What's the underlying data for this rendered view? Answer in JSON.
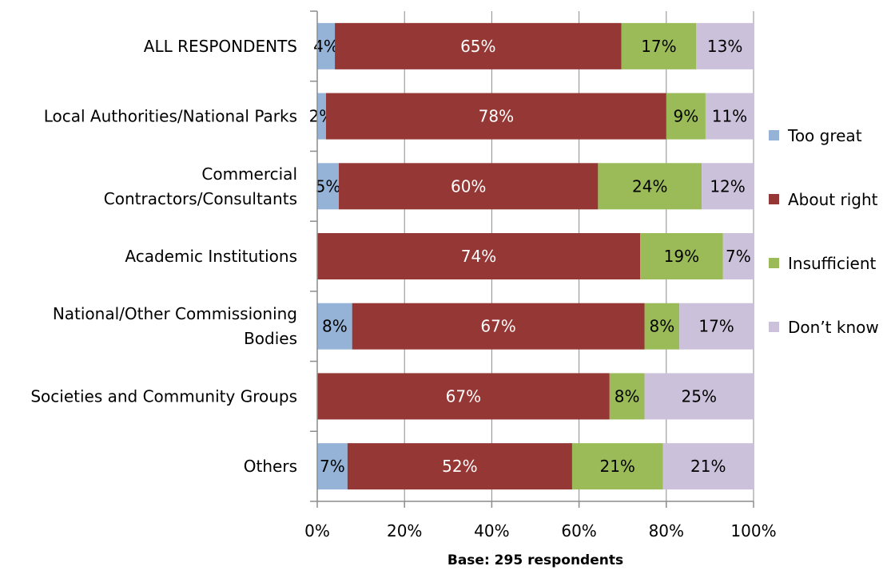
{
  "chart_data": {
    "type": "bar",
    "orientation": "horizontal",
    "stacked": "percent",
    "categories": [
      "ALL RESPONDENTS",
      "Local Authorities/National Parks",
      "Commercial Contractors/Consultants",
      "Academic Institutions",
      "National/Other Commissioning Bodies",
      "Societies and Community Groups",
      "Others"
    ],
    "category_lines": [
      [
        "ALL RESPONDENTS"
      ],
      [
        "Local Authorities/National Parks"
      ],
      [
        "Commercial",
        "Contractors/Consultants"
      ],
      [
        "Academic Institutions"
      ],
      [
        "National/Other Commissioning",
        "Bodies"
      ],
      [
        "Societies and Community Groups"
      ],
      [
        "Others"
      ]
    ],
    "series": [
      {
        "name": "Too great",
        "color": "#95b3d7",
        "label_color": "#000000",
        "values": [
          4,
          2,
          5,
          0,
          8,
          0,
          7
        ],
        "labels": [
          "4%",
          "2%",
          "5%",
          "",
          "8%",
          "",
          "7%"
        ]
      },
      {
        "name": "About right",
        "color": "#953735",
        "label_color": "#ffffff",
        "values": [
          65,
          78,
          60,
          74,
          67,
          67,
          52
        ],
        "labels": [
          "65%",
          "78%",
          "60%",
          "74%",
          "67%",
          "67%",
          "52%"
        ]
      },
      {
        "name": "Insufficient",
        "color": "#9bbb59",
        "label_color": "#000000",
        "values": [
          17,
          9,
          24,
          19,
          8,
          8,
          21
        ],
        "labels": [
          "17%",
          "9%",
          "24%",
          "19%",
          "8%",
          "8%",
          "21%"
        ]
      },
      {
        "name": "Don’t know",
        "color": "#ccc1da",
        "label_color": "#000000",
        "values": [
          13,
          11,
          12,
          7,
          17,
          25,
          21
        ],
        "labels": [
          "13%",
          "11%",
          "12%",
          "7%",
          "17%",
          "25%",
          "21%"
        ]
      }
    ],
    "xticks": [
      "0%",
      "20%",
      "40%",
      "60%",
      "80%",
      "100%"
    ],
    "xlim": [
      0,
      100
    ],
    "xlabel": "Base: 295 respondents",
    "legend_position": "right",
    "grid": "vertical"
  }
}
